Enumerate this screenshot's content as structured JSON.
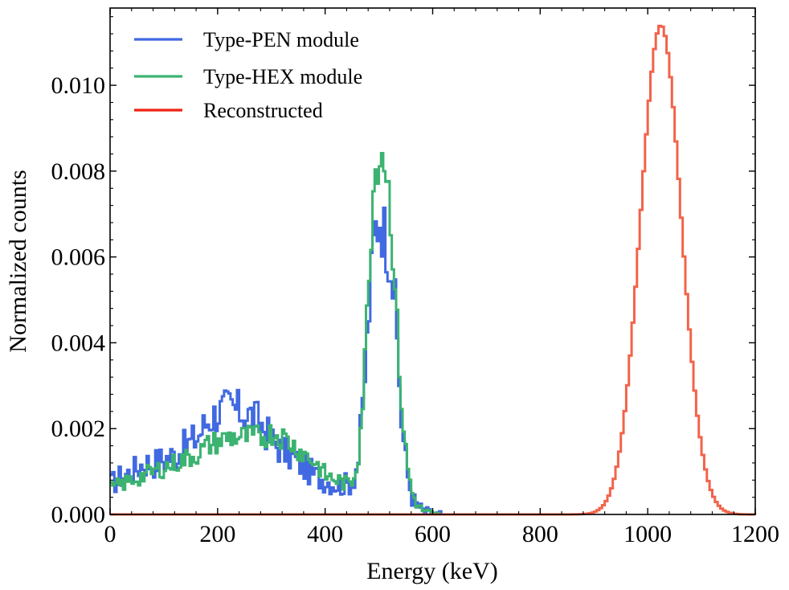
{
  "chart_data": {
    "type": "line",
    "title": "",
    "xlabel": "Energy (keV)",
    "ylabel": "Normalized counts",
    "xlim": [
      0,
      1200
    ],
    "ylim": [
      0,
      0.0118
    ],
    "xticks": [
      0,
      200,
      400,
      600,
      800,
      1000,
      1200
    ],
    "xtick_labels": [
      "0",
      "200",
      "400",
      "600",
      "800",
      "1000",
      "1200"
    ],
    "yticks": [
      0,
      0.002,
      0.004,
      0.006,
      0.008,
      0.01
    ],
    "ytick_labels": [
      "0.000",
      "0.002",
      "0.004",
      "0.006",
      "0.008",
      "0.010"
    ],
    "grid": false,
    "legend": "top-left",
    "series": [
      {
        "name": "Type-PEN module",
        "color": "#4169e1",
        "style": "step",
        "x": [
          0,
          20,
          40,
          60,
          80,
          100,
          120,
          140,
          160,
          180,
          200,
          220,
          240,
          260,
          280,
          300,
          320,
          340,
          360,
          380,
          400,
          420,
          440,
          450,
          460,
          470,
          480,
          490,
          500,
          510,
          520,
          530,
          540,
          550,
          560,
          570,
          580,
          590,
          600,
          620
        ],
        "y": [
          0.0007,
          0.0009,
          0.001,
          0.0012,
          0.0012,
          0.0013,
          0.0014,
          0.0016,
          0.0018,
          0.0022,
          0.0024,
          0.0025,
          0.0024,
          0.0023,
          0.0021,
          0.0017,
          0.0015,
          0.0013,
          0.0011,
          0.0009,
          0.0008,
          0.0007,
          0.0007,
          0.0008,
          0.0013,
          0.0028,
          0.0048,
          0.0066,
          0.007,
          0.0065,
          0.006,
          0.0045,
          0.0022,
          0.001,
          0.0004,
          0.0002,
          0.0001,
          5e-05,
          0.0,
          0.0
        ]
      },
      {
        "name": "Type-HEX module",
        "color": "#3cb371",
        "style": "step",
        "x": [
          0,
          20,
          40,
          60,
          80,
          100,
          120,
          140,
          160,
          180,
          200,
          220,
          240,
          260,
          280,
          300,
          320,
          340,
          360,
          380,
          400,
          420,
          440,
          450,
          460,
          470,
          480,
          490,
          500,
          510,
          520,
          530,
          540,
          550,
          560,
          570,
          580,
          590,
          600,
          620
        ],
        "y": [
          0.0006,
          0.0007,
          0.0008,
          0.0009,
          0.001,
          0.0011,
          0.0012,
          0.0013,
          0.0014,
          0.0016,
          0.0017,
          0.0018,
          0.0018,
          0.0018,
          0.0018,
          0.0019,
          0.0018,
          0.0016,
          0.0014,
          0.0012,
          0.0009,
          0.0008,
          0.0007,
          0.0008,
          0.0014,
          0.003,
          0.0058,
          0.008,
          0.0085,
          0.0083,
          0.007,
          0.0048,
          0.0026,
          0.0012,
          0.0005,
          0.0002,
          0.0001,
          5e-05,
          0.0,
          0.0
        ]
      },
      {
        "name": "Reconstructed",
        "color": "#ee2211",
        "style": "step",
        "gaussian": {
          "mean": 1022,
          "sigma": 38,
          "peak": 0.0114,
          "x_start": 0,
          "x_end": 1200,
          "step": 5
        }
      }
    ]
  }
}
